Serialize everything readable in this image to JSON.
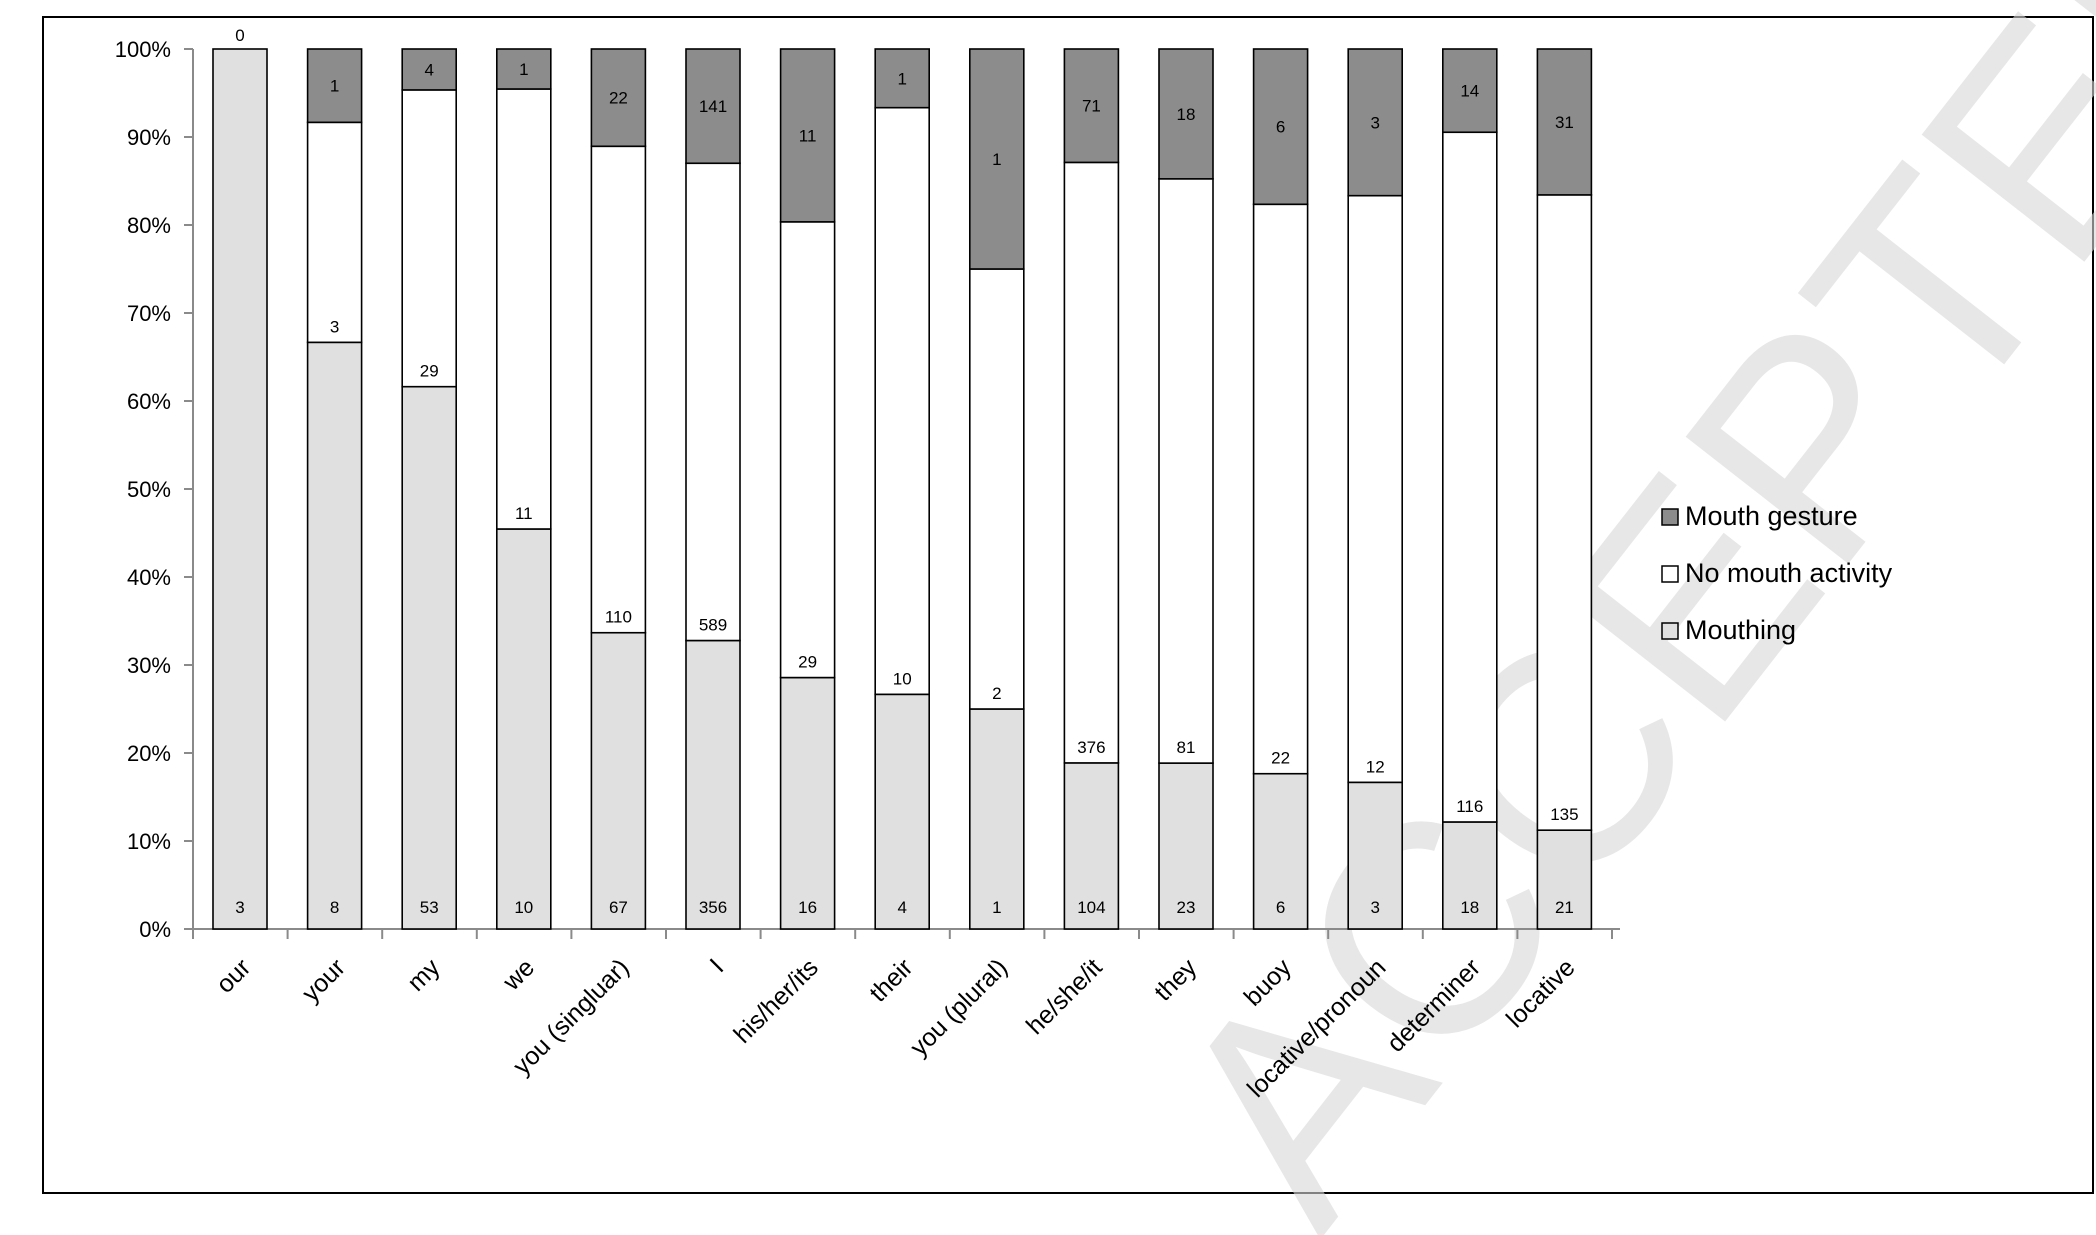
{
  "chart_data": {
    "type": "bar",
    "stacked": "percent",
    "categories": [
      "our",
      "your",
      "my",
      "we",
      "you (singluar)",
      "I",
      "his/her/its",
      "their",
      "you (plural)",
      "he/she/it",
      "they",
      "buoy",
      "locative/pronoun",
      "determiner",
      "locative"
    ],
    "series": [
      {
        "name": "Mouthing",
        "color": "#e0e0e0",
        "values": [
          3,
          8,
          53,
          10,
          67,
          356,
          16,
          4,
          1,
          104,
          23,
          6,
          3,
          18,
          21
        ]
      },
      {
        "name": "No mouth activity",
        "color": "#ffffff",
        "values": [
          0,
          3,
          29,
          11,
          110,
          589,
          29,
          10,
          2,
          376,
          81,
          22,
          12,
          116,
          135
        ]
      },
      {
        "name": "Mouth gesture",
        "color": "#8c8c8c",
        "values": [
          0,
          1,
          4,
          1,
          22,
          141,
          11,
          1,
          1,
          71,
          18,
          6,
          3,
          14,
          31
        ]
      }
    ],
    "top_labels": [
      "0",
      "1",
      "4",
      "1",
      "22",
      "141",
      "11",
      "1",
      "1",
      "71",
      "18",
      "6",
      "3",
      "14",
      "31"
    ],
    "mid_labels": [
      "",
      "3",
      "29",
      "11",
      "110",
      "589",
      "29",
      "10",
      "2",
      "376",
      "81",
      "22",
      "12",
      "116",
      "135"
    ],
    "bottom_labels": [
      "3",
      "8",
      "53",
      "10",
      "67",
      "356",
      "16",
      "4",
      "1",
      "104",
      "23",
      "6",
      "3",
      "18",
      "21"
    ],
    "y_ticks": [
      "0%",
      "10%",
      "20%",
      "30%",
      "40%",
      "50%",
      "60%",
      "70%",
      "80%",
      "90%",
      "100%"
    ],
    "ylim": [
      0,
      100
    ],
    "legend": [
      "Mouth gesture",
      "No mouth activity",
      "Mouthing"
    ],
    "legend_position": "right",
    "grid": false,
    "title": "",
    "xlabel": "",
    "ylabel": ""
  },
  "watermark": "ACCEPTED MANUSCRIPT"
}
